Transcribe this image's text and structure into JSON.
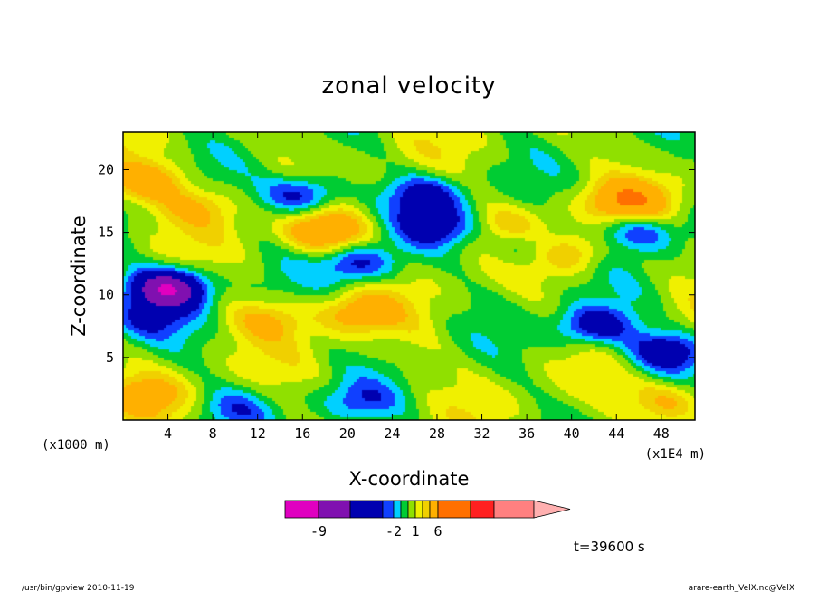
{
  "chart_data": {
    "type": "heatmap",
    "title": "zonal velocity",
    "xlabel": "X-coordinate",
    "ylabel": "Z-coordinate",
    "x_unit": "(x1E4 m)",
    "y_unit": "(x1000 m)",
    "xlim": [
      0,
      51
    ],
    "ylim": [
      0,
      23
    ],
    "x_ticks": [
      4,
      8,
      12,
      16,
      20,
      24,
      28,
      32,
      36,
      40,
      44,
      48
    ],
    "y_ticks": [
      5,
      10,
      15,
      20
    ],
    "colorbar": {
      "labels": [
        {
          "text": "-9",
          "value": -9
        },
        {
          "text": "-2",
          "value": -2
        },
        {
          "text": "1",
          "value": 1
        },
        {
          "text": "6",
          "value": 6
        }
      ],
      "bins": [
        {
          "value": -12,
          "color": "#e000c0"
        },
        {
          "value": -9,
          "color": "#8010b0"
        },
        {
          "value": -6,
          "color": "#0000b0"
        },
        {
          "value": -3,
          "color": "#1040ff"
        },
        {
          "value": -2,
          "color": "#00d0ff"
        },
        {
          "value": -1,
          "color": "#00cc33"
        },
        {
          "value": 0,
          "color": "#90e000"
        },
        {
          "value": 1,
          "color": "#f0f000"
        },
        {
          "value": 2,
          "color": "#f0d000"
        },
        {
          "value": 3,
          "color": "#ffb000"
        },
        {
          "value": 6,
          "color": "#ff7000"
        },
        {
          "value": 9,
          "color": "#ff2020"
        },
        {
          "value": 12,
          "color": "#ff8080"
        }
      ],
      "extend_color": "#ffb0b0"
    },
    "features": [
      {
        "x": 18,
        "z": 15.0,
        "amp": 5
      },
      {
        "x": 45,
        "z": 17.5,
        "amp": 5
      },
      {
        "x": 2,
        "z": 19.0,
        "amp": 4
      },
      {
        "x": 7,
        "z": 17.0,
        "amp": 2.5
      },
      {
        "x": 21,
        "z": 8.5,
        "amp": 3.5
      },
      {
        "x": 13,
        "z": 8.0,
        "amp": 2.5
      },
      {
        "x": 35,
        "z": 15.5,
        "amp": 2
      },
      {
        "x": 40,
        "z": 13.5,
        "amp": 3
      },
      {
        "x": 49,
        "z": 1.5,
        "amp": 3.5
      },
      {
        "x": 2,
        "z": 2.0,
        "amp": 3
      },
      {
        "x": 16,
        "z": 18.0,
        "amp": -5
      },
      {
        "x": 27,
        "z": 18.0,
        "amp": -4
      },
      {
        "x": 4,
        "z": 10.5,
        "amp": -9
      },
      {
        "x": 2,
        "z": 8.0,
        "amp": -3
      },
      {
        "x": 42,
        "z": 7.5,
        "amp": -5
      },
      {
        "x": 48.5,
        "z": 5.5,
        "amp": -5
      },
      {
        "x": 21,
        "z": 12.5,
        "amp": -4
      },
      {
        "x": 28,
        "z": 15.5,
        "amp": -4
      },
      {
        "x": 46,
        "z": 15.0,
        "amp": -4
      },
      {
        "x": 21,
        "z": 1.5,
        "amp": -2.5
      },
      {
        "x": 10,
        "z": 1.0,
        "amp": -2.5
      },
      {
        "x": 36,
        "z": 14.0,
        "amp": -3
      }
    ]
  },
  "annotations": {
    "time": "t=39600 s",
    "footer_left": "/usr/bin/gpview   2010-11-19",
    "footer_right": "arare-earth_VelX.nc@VelX"
  }
}
